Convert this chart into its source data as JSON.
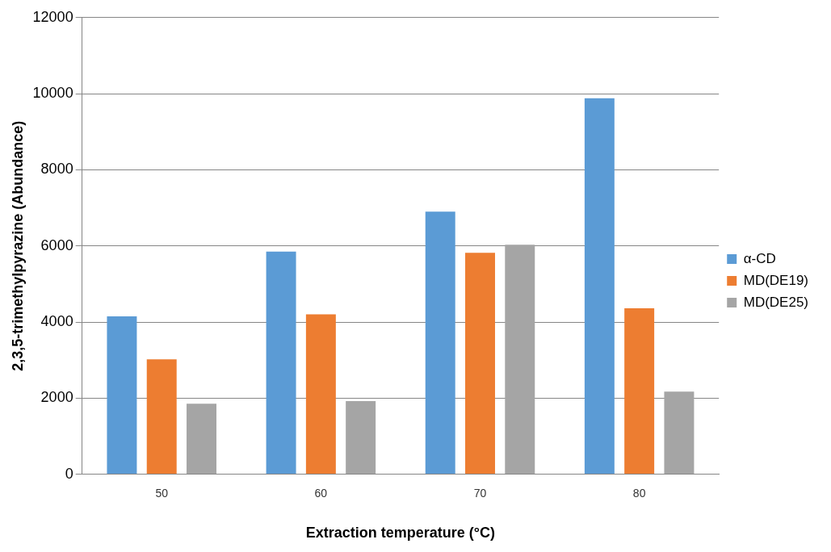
{
  "chart_data": {
    "type": "bar",
    "xlabel": "Extraction temperature (°C)",
    "ylabel": "2,3,5-trimethylpyrazine (Abundance)",
    "categories": [
      "50",
      "60",
      "70",
      "80"
    ],
    "series": [
      {
        "name": "α-CD",
        "color": "#5b9bd5",
        "values": [
          4150,
          5850,
          6900,
          9880
        ]
      },
      {
        "name": "MD(DE19)",
        "color": "#ed7d31",
        "values": [
          3020,
          4200,
          5820,
          4360
        ]
      },
      {
        "name": "MD(DE25)",
        "color": "#a5a5a5",
        "values": [
          1850,
          1920,
          6030,
          2170
        ]
      }
    ],
    "ylim": [
      0,
      12000
    ],
    "yticks": [
      0,
      2000,
      4000,
      6000,
      8000,
      10000,
      12000
    ],
    "grid": "y",
    "legend": "right"
  }
}
